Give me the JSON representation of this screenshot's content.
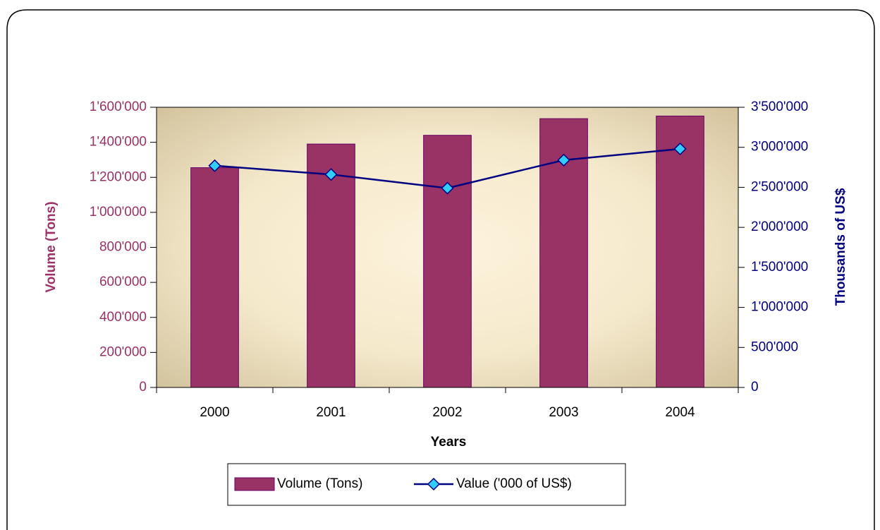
{
  "chart_data": {
    "type": "bar",
    "categories": [
      "2000",
      "2001",
      "2002",
      "2003",
      "2004"
    ],
    "series": [
      {
        "name": "Volume (Tons)",
        "type": "bar",
        "color": "#993366",
        "values": [
          1255000,
          1390000,
          1440000,
          1535000,
          1550000
        ]
      },
      {
        "name": "Value ('000 of US$)",
        "type": "line",
        "axis": "y2",
        "color": "#000080",
        "marker_color": "#33ccff",
        "values": [
          2770000,
          2660000,
          2490000,
          2840000,
          2980000
        ]
      }
    ],
    "xlabel": "Years",
    "ylabel": "Volume (Tons)",
    "y2label": "Thousands of US$",
    "ylim": [
      0,
      1600000
    ],
    "yticks": [
      0,
      {
        "value": 200000,
        "label": "200'000"
      },
      {
        "value": 400000,
        "label": "400'000"
      },
      {
        "value": 600000,
        "label": "600'000"
      },
      {
        "value": 800000,
        "label": "800'000"
      },
      {
        "value": 1000000,
        "label": "1'000'000"
      },
      {
        "value": 1200000,
        "label": "1'200'000"
      },
      {
        "value": 1400000,
        "label": "1'400'000"
      },
      {
        "value": 1600000,
        "label": "1'600'000"
      }
    ],
    "y2lim": [
      0,
      3500000
    ],
    "y2ticks": [
      0,
      {
        "value": 500000,
        "label": "500'000"
      },
      {
        "value": 1000000,
        "label": "1'000'000"
      },
      {
        "value": 1500000,
        "label": "1'500'000"
      },
      {
        "value": 2000000,
        "label": "2'000'000"
      },
      {
        "value": 2500000,
        "label": "2'500'000"
      },
      {
        "value": 3000000,
        "label": "3'000'000"
      },
      {
        "value": 3500000,
        "label": "3'500'000"
      }
    ],
    "legend": "bottom"
  }
}
